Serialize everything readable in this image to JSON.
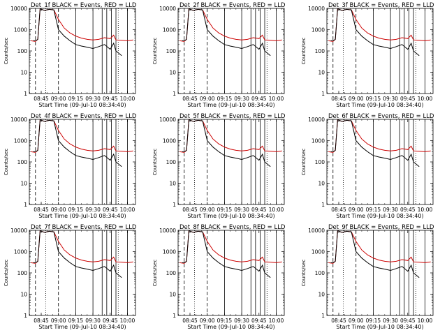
{
  "panels": [
    {
      "title": "Det_1f BLACK = Events, RED = LLD",
      "xlabel": "Start Time (09-Jul-10 08:34:40)",
      "ylabel": "Counts/sec"
    },
    {
      "title": "Det_2f BLACK = Events, RED = LLD",
      "xlabel": "Start Time (09-Jul-10 08:34:40)",
      "ylabel": "Counts/sec"
    },
    {
      "title": "Det_3f BLACK = Events, RED = LLD",
      "xlabel": "Start Time (09-Jul-10 08:34:40)",
      "ylabel": "Counts/sec"
    },
    {
      "title": "Det_4f BLACK = Events, RED = LLD",
      "xlabel": "Start Time (09-Jul-10 08:34:40)",
      "ylabel": "Counts/sec"
    },
    {
      "title": "Det_5f BLACK = Events, RED = LLD",
      "xlabel": "Start Time (09-Jul-10 08:34:40)",
      "ylabel": "Counts/sec"
    },
    {
      "title": "Det_6f BLACK = Events, RED = LLD",
      "xlabel": "Start Time (09-Jul-10 08:34:40)",
      "ylabel": "Counts/sec"
    },
    {
      "title": "Det_7f BLACK = Events, RED = LLD",
      "xlabel": "Start Time (09-Jul-10 08:34:40)",
      "ylabel": "Counts/sec"
    },
    {
      "title": "Det_8f BLACK = Events, RED = LLD",
      "xlabel": "Start Time (09-Jul-10 08:34:40)",
      "ylabel": "Counts/sec"
    },
    {
      "title": "Det_9f BLACK = Events, RED = LLD",
      "xlabel": "Start Time (09-Jul-10 08:34:40)",
      "ylabel": "Counts/sec"
    }
  ],
  "chart_data": {
    "type": "line",
    "layout": "3x3 grid",
    "y_scale": "log",
    "ylim": [
      1,
      10000
    ],
    "y_ticks": [
      1,
      10,
      100,
      1000,
      10000
    ],
    "y_tick_labels": [
      "1",
      "10",
      "100",
      "1000",
      "10000"
    ],
    "xlim": [
      "08:34:40",
      "10:07"
    ],
    "x_ticks": [
      "08:45",
      "09:00",
      "09:15",
      "09:30",
      "09:45",
      "10:00"
    ],
    "colors": {
      "events": "#000000",
      "lld": "#cc0000"
    },
    "markers": {
      "dashed_times": [
        "08:40",
        "09:00"
      ],
      "dotted_times": [
        "08:49",
        "09:52"
      ],
      "solid_times": [
        "09:15",
        "09:30",
        "09:38",
        "09:42",
        "09:46",
        "09:50",
        "10:00"
      ]
    },
    "series": [
      {
        "key": "lld",
        "x": [
          "08:36",
          "08:40",
          "08:42",
          "08:44",
          "08:48",
          "08:52",
          "08:56",
          "09:00",
          "09:05",
          "09:10",
          "09:15",
          "09:20",
          "09:25",
          "09:30",
          "09:35",
          "09:40",
          "09:45",
          "09:48",
          "09:50",
          "09:55",
          "10:00",
          "10:05"
        ],
        "values": [
          300,
          280,
          350,
          9500,
          8000,
          9000,
          8500,
          3000,
          1200,
          700,
          500,
          400,
          350,
          330,
          350,
          420,
          380,
          550,
          330,
          320,
          300,
          330
        ]
      },
      {
        "key": "events",
        "x": [
          "08:38",
          "08:40",
          "08:42",
          "08:44",
          "08:48",
          "08:52",
          "08:56",
          "09:00",
          "09:05",
          "09:10",
          "09:15",
          "09:20",
          "09:25",
          "09:30",
          "09:35",
          "09:40",
          "09:45",
          "09:48",
          "09:50",
          "09:55"
        ],
        "values": [
          300,
          300,
          350,
          9500,
          8000,
          9000,
          8500,
          1000,
          500,
          300,
          200,
          170,
          150,
          130,
          160,
          200,
          120,
          230,
          100,
          60
        ]
      }
    ]
  }
}
